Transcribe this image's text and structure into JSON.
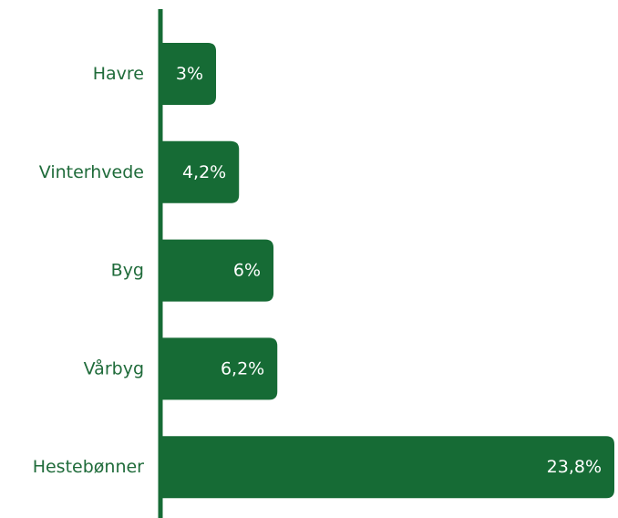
{
  "chart_data": {
    "type": "bar",
    "orientation": "horizontal",
    "categories": [
      "Havre",
      "Vinterhvede",
      "Byg",
      "Vårbyg",
      "Hestebønner"
    ],
    "values": [
      3,
      4.2,
      6,
      6.2,
      23.8
    ],
    "value_labels": [
      "3%",
      "4,2%",
      "6%",
      "6,2%",
      "23,8%"
    ],
    "title": "",
    "xlabel": "",
    "ylabel": "",
    "grid": false,
    "legend": "none",
    "colors": {
      "bar": "#166b35",
      "axis": "#166b35",
      "category_text": "#1f6b3a",
      "value_text": "#ffffff"
    }
  }
}
